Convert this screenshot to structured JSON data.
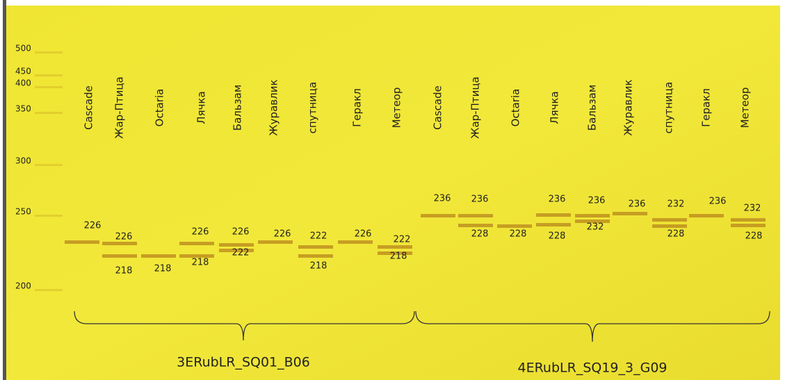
{
  "ladder": [
    500,
    450,
    400,
    350,
    300,
    250,
    200
  ],
  "groups": [
    {
      "label": "3ERubLR_SQ01_B06",
      "lanes": [
        {
          "name": "Cascade",
          "bands": [
            226
          ]
        },
        {
          "name": "Жар-Птица",
          "bands": [
            226,
            218
          ]
        },
        {
          "name": "Octaria",
          "bands": [
            218
          ]
        },
        {
          "name": "Лячка",
          "bands": [
            226,
            218
          ]
        },
        {
          "name": "Бальзам",
          "bands": [
            226,
            222
          ]
        },
        {
          "name": "Журавлик",
          "bands": [
            226
          ]
        },
        {
          "name": "спутница",
          "bands": [
            222,
            218
          ]
        },
        {
          "name": "Геракл",
          "bands": [
            226
          ]
        },
        {
          "name": "Метеор",
          "bands": [
            222,
            218
          ]
        }
      ]
    },
    {
      "label": "4ERubLR_SQ19_3_G09",
      "lanes": [
        {
          "name": "Cascade",
          "bands": [
            236
          ]
        },
        {
          "name": "Жар-Птица",
          "bands": [
            236,
            228
          ]
        },
        {
          "name": "Octaria",
          "bands": [
            228
          ]
        },
        {
          "name": "Лячка",
          "bands": [
            236,
            228
          ]
        },
        {
          "name": "Бальзам",
          "bands": [
            236,
            232
          ]
        },
        {
          "name": "Журавлик",
          "bands": [
            236
          ]
        },
        {
          "name": "спутница",
          "bands": [
            232,
            228
          ]
        },
        {
          "name": "Геракл",
          "bands": [
            236
          ]
        },
        {
          "name": "Метеор",
          "bands": [
            232,
            228
          ]
        }
      ]
    }
  ]
}
